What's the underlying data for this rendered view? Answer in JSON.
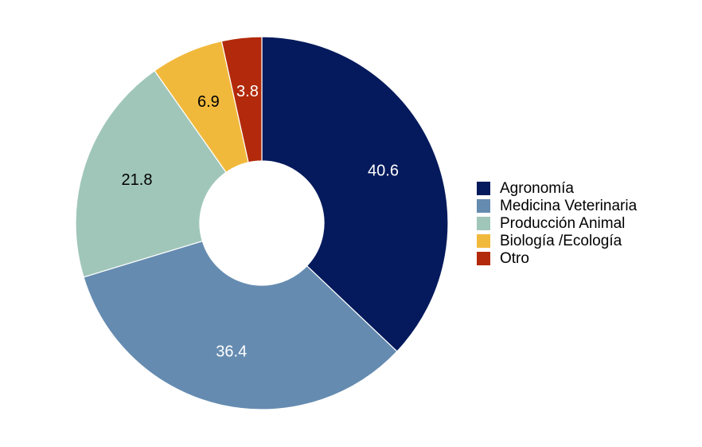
{
  "chart_data": {
    "type": "pie",
    "donut": true,
    "categories": [
      "Agronomía",
      "Medicina Veterinaria",
      "Producción Animal",
      "Biología /Ecología",
      "Otro"
    ],
    "values": [
      40.6,
      36.4,
      21.8,
      6.9,
      3.8
    ],
    "value_labels": [
      "40.6",
      "36.4",
      "21.8",
      "6.9",
      "3.8"
    ],
    "colors": [
      "#041A5C",
      "#658BB0",
      "#A0C6BA",
      "#F1B93C",
      "#B22A0B"
    ],
    "label_colors": [
      "#ffffff",
      "#ffffff",
      "#000000",
      "#000000",
      "#ffffff"
    ],
    "start_angle_deg": 0,
    "direction": "clockwise",
    "legend_position": "right",
    "title": ""
  }
}
